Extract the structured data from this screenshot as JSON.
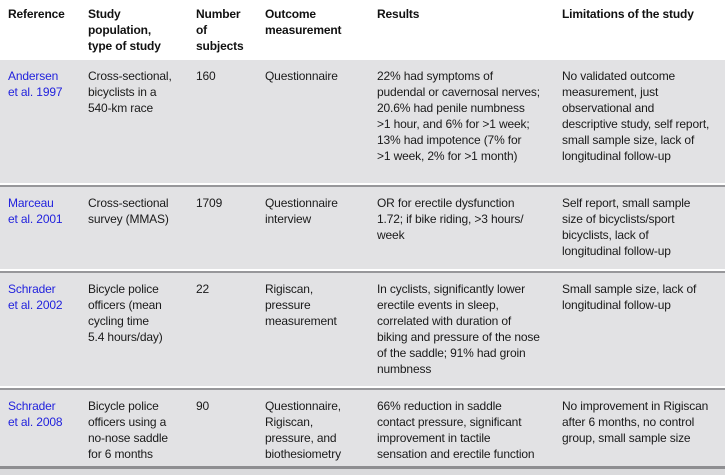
{
  "colors": {
    "row_background": "#e2e2e4",
    "divider_rule": "#97979a",
    "bottom_rule": "#8e8e91",
    "bottom_strip": "#dadadc",
    "reference_link": "#2222dd",
    "text": "#1a1a1a"
  },
  "table": {
    "columns": [
      {
        "label": "Reference"
      },
      {
        "label": "Study\npopulation,\ntype of study"
      },
      {
        "label": "Number\nof\nsubjects"
      },
      {
        "label": "Outcome\nmeasurement"
      },
      {
        "label": "Results"
      },
      {
        "label": "Limitations of the study"
      }
    ],
    "rows": [
      {
        "reference": "Andersen\net al. 1997",
        "population": "Cross-sectional,\nbicyclists in a\n540-km race",
        "subjects": "160",
        "outcome": "Questionnaire",
        "results": "22% had symptoms of\npudendal or cavernosal nerves;\n20.6% had penile numbness\n>1 hour, and 6% for >1 week;\n13% had impotence (7% for\n>1 week, 2% for >1 month)",
        "limitations": "No validated outcome\nmeasurement, just\nobservational and\ndescriptive study, self report,\nsmall sample size, lack of\nlongitudinal follow-up"
      },
      {
        "reference": "Marceau\net al. 2001",
        "population": "Cross-sectional\nsurvey (MMAS)",
        "subjects": "1709",
        "outcome": "Questionnaire\ninterview",
        "results": "OR for erectile dysfunction\n1.72; if bike riding, >3 hours/\nweek",
        "limitations": "Self report, small sample\nsize of bicyclists/sport\nbicyclists, lack of\nlongitudinal follow-up"
      },
      {
        "reference": "Schrader\net al. 2002",
        "population": "Bicycle police\nofficers (mean\ncycling time\n5.4 hours/day)",
        "subjects": "22",
        "outcome": "Rigiscan,\npressure\nmeasurement",
        "results": "In cyclists, significantly lower\nerectile events in sleep,\ncorrelated with duration of\nbiking and pressure of the nose\nof the saddle; 91% had groin\nnumbness",
        "limitations": "Small sample size, lack of\nlongitudinal follow-up"
      },
      {
        "reference": "Schrader\net al. 2008",
        "population": "Bicycle police\nofficers using a\nno-nose saddle\nfor 6 months",
        "subjects": "90",
        "outcome": "Questionnaire,\nRigiscan,\npressure, and\nbiothesiometry",
        "results": "66% reduction in saddle\ncontact pressure, significant\nimprovement in tactile\nsensation and erectile function",
        "limitations": "No improvement in Rigiscan\nafter 6 months, no control\ngroup, small sample size"
      }
    ]
  }
}
